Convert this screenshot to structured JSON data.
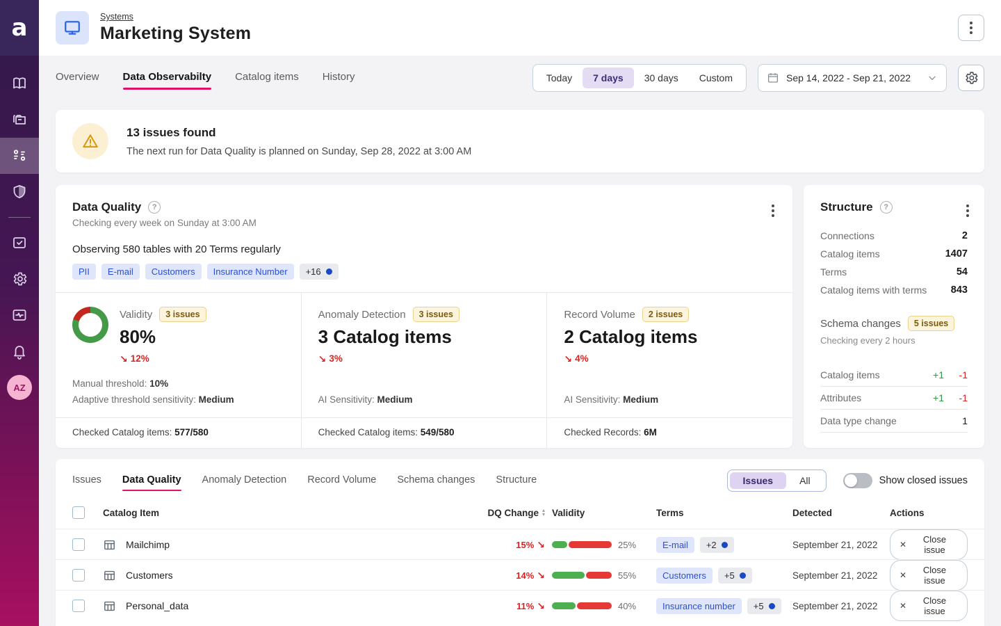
{
  "colors": {
    "accent_pink": "#df1168",
    "sidebar_top": "#31194a",
    "sidebar_bottom": "#a81060",
    "donut_green": "#449a47",
    "donut_red": "#c3271d",
    "bar_green": "#4caf50",
    "bar_red": "#e53935",
    "tag_text": "#2b50d0",
    "tag_bg": "#dfe6fb",
    "warning_amber": "#d9940a",
    "selected_purple_bg": "#e4dcf3"
  },
  "sidebar": {
    "logo": "a",
    "avatar": "AZ"
  },
  "header": {
    "breadcrumb": "Systems",
    "title": "Marketing System"
  },
  "nav_tabs": {
    "items": [
      "Overview",
      "Data Observabilty",
      "Catalog items",
      "History"
    ],
    "active": "Data Observabilty"
  },
  "time_controls": {
    "presets": [
      "Today",
      "7 days",
      "30 days",
      "Custom"
    ],
    "selected": "7 days",
    "date_range": "Sep 14, 2022 - Sep 21, 2022"
  },
  "alert": {
    "title": "13 issues found",
    "subtitle": "The next run for Data Quality is planned on Sunday, Sep 28, 2022 at 3:00 AM"
  },
  "data_quality": {
    "title": "Data Quality",
    "subtitle": "Checking every week on Sunday at 3:00 AM",
    "observing": "Observing 580 tables with 20 Terms regularly",
    "tags": [
      "PII",
      "E-mail",
      "Customers",
      "Insurance Number"
    ],
    "tags_more": "+16",
    "metrics": [
      {
        "label": "Validity",
        "badge": "3 issues",
        "value": "80%",
        "donut": 80,
        "change": "12%",
        "details": [
          {
            "label": "Manual threshold:",
            "value": "10%"
          },
          {
            "label": "Adaptive threshold sensitivity:",
            "value": "Medium"
          }
        ],
        "footer_label": "Checked Catalog items:",
        "footer_value": "577/580"
      },
      {
        "label": "Anomaly Detection",
        "badge": "3 issues",
        "value": "3 Catalog items",
        "change": "3%",
        "details": [
          {
            "label": "AI Sensitivity:",
            "value": "Medium"
          }
        ],
        "footer_label": "Checked Catalog items:",
        "footer_value": "549/580"
      },
      {
        "label": "Record Volume",
        "badge": "2 issues",
        "value": "2 Catalog items",
        "change": "4%",
        "details": [
          {
            "label": "AI Sensitivity:",
            "value": "Medium"
          }
        ],
        "footer_label": "Checked Records:",
        "footer_value": "6M"
      }
    ]
  },
  "structure": {
    "title": "Structure",
    "stats": [
      {
        "label": "Connections",
        "value": "2"
      },
      {
        "label": "Catalog items",
        "value": "1407"
      },
      {
        "label": "Terms",
        "value": "54"
      },
      {
        "label": "Catalog items with terms",
        "value": "843"
      }
    ],
    "schema": {
      "label": "Schema changes",
      "badge": "5 issues",
      "subtitle": "Checking every 2 hours"
    },
    "changes": [
      {
        "label": "Catalog items",
        "plus": "+1",
        "minus": "-1"
      },
      {
        "label": "Attributes",
        "plus": "+1",
        "minus": "-1"
      },
      {
        "label": "Data type change",
        "total": "1"
      }
    ]
  },
  "issues_panel": {
    "tabs": [
      "Issues",
      "Data Quality",
      "Anomaly Detection",
      "Record Volume",
      "Schema changes",
      "Structure"
    ],
    "active_tab": "Data Quality",
    "view_options": [
      "Issues",
      "All"
    ],
    "view_selected": "Issues",
    "toggle_label": "Show closed issues",
    "columns": [
      "Catalog Item",
      "DQ Change",
      "Validity",
      "Terms",
      "Detected",
      "Actions"
    ],
    "rows": [
      {
        "name": "Mailchimp",
        "dq_change": "15%",
        "validity_pct": 25,
        "validity_label": "25%",
        "term": "E-mail",
        "term_more": "+2",
        "detected": "September 21, 2022",
        "action": "Close issue"
      },
      {
        "name": "Customers",
        "dq_change": "14%",
        "validity_pct": 55,
        "validity_label": "55%",
        "term": "Customers",
        "term_more": "+5",
        "detected": "September 21, 2022",
        "action": "Close issue"
      },
      {
        "name": "Personal_data",
        "dq_change": "11%",
        "validity_pct": 40,
        "validity_label": "40%",
        "term": "Insurance number",
        "term_more": "+5",
        "detected": "September 21, 2022",
        "action": "Close issue"
      }
    ]
  }
}
